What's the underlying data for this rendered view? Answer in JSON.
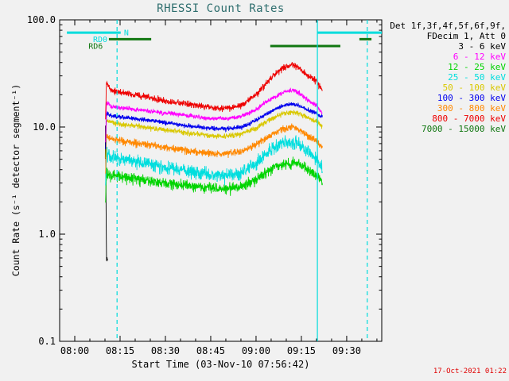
{
  "page": {
    "background": "#f1f1f1"
  },
  "chart_data": {
    "type": "line",
    "title": "RHESSI Count Rates",
    "xlabel": "Start Time (03-Nov-10 07:56:42)",
    "ylabel": "Count Rate (s⁻¹ detector segment⁻¹)",
    "timestamp": "17-Oct-2021 01:22",
    "x_axis": {
      "range_minutes": [
        -5,
        101.6
      ],
      "minor_tick_minutes": 5,
      "major_ticks": [
        {
          "label": "08:00",
          "t": 0
        },
        {
          "label": "08:15",
          "t": 15
        },
        {
          "label": "08:30",
          "t": 30
        },
        {
          "label": "08:45",
          "t": 45
        },
        {
          "label": "09:00",
          "t": 60
        },
        {
          "label": "09:15",
          "t": 75
        },
        {
          "label": "09:30",
          "t": 90
        }
      ]
    },
    "y_axis": {
      "scale": "log",
      "range": [
        0.1,
        100
      ],
      "major_ticks": [
        {
          "label": "0.1",
          "v": 0.1
        },
        {
          "label": "1.0",
          "v": 1
        },
        {
          "label": "10.0",
          "v": 10
        },
        {
          "label": "100.0",
          "v": 100
        }
      ]
    },
    "legend_header": [
      "Det 1f,3f,4f,5f,6f,9f,",
      "FDecim 1, Att 0"
    ],
    "series": [
      {
        "name": "3 - 6 keV",
        "color": "#000000",
        "z": 1,
        "noise": 0.04,
        "points": [
          [
            10.1,
            5
          ],
          [
            10.2,
            14
          ],
          [
            10.35,
            2.2
          ],
          [
            10.5,
            0.55
          ],
          [
            10.7,
            0.62
          ],
          [
            10.9,
            0.55
          ]
        ]
      },
      {
        "name": "6 - 12 keV",
        "color": "#ff00ff",
        "z": 7,
        "noise": 0.05,
        "points": [
          [
            10.2,
            7
          ],
          [
            10.5,
            17
          ],
          [
            12,
            15.5
          ],
          [
            16,
            15
          ],
          [
            20,
            14.5
          ],
          [
            25,
            14
          ],
          [
            30,
            13.5
          ],
          [
            35,
            13
          ],
          [
            40,
            12.5
          ],
          [
            45,
            12
          ],
          [
            50,
            12
          ],
          [
            55,
            12.5
          ],
          [
            60,
            14.5
          ],
          [
            63,
            17
          ],
          [
            66,
            19
          ],
          [
            69,
            21
          ],
          [
            72,
            22
          ],
          [
            74,
            21
          ],
          [
            76,
            19
          ],
          [
            78,
            17
          ],
          [
            80,
            16
          ],
          [
            81,
            14.5
          ],
          [
            82,
            13.5
          ]
        ]
      },
      {
        "name": "12 - 25 keV",
        "color": "#00d400",
        "z": 2,
        "noise": 0.12,
        "points": [
          [
            10.2,
            2
          ],
          [
            10.5,
            3.8
          ],
          [
            12,
            3.6
          ],
          [
            16,
            3.4
          ],
          [
            20,
            3.3
          ],
          [
            25,
            3.15
          ],
          [
            30,
            3
          ],
          [
            35,
            2.9
          ],
          [
            40,
            2.8
          ],
          [
            45,
            2.7
          ],
          [
            50,
            2.65
          ],
          [
            55,
            2.8
          ],
          [
            60,
            3.2
          ],
          [
            63,
            3.7
          ],
          [
            66,
            4.2
          ],
          [
            69,
            4.5
          ],
          [
            72,
            4.6
          ],
          [
            74,
            4.5
          ],
          [
            76,
            4.2
          ],
          [
            78,
            3.8
          ],
          [
            80,
            3.5
          ],
          [
            81,
            3.3
          ],
          [
            82,
            3.1
          ]
        ]
      },
      {
        "name": "25 - 50 keV",
        "color": "#00dede",
        "z": 3,
        "noise": 0.15,
        "points": [
          [
            10.2,
            2.8
          ],
          [
            10.5,
            5.6
          ],
          [
            12,
            5.3
          ],
          [
            16,
            5
          ],
          [
            20,
            4.8
          ],
          [
            25,
            4.5
          ],
          [
            30,
            4.2
          ],
          [
            35,
            4
          ],
          [
            40,
            3.8
          ],
          [
            45,
            3.6
          ],
          [
            50,
            3.5
          ],
          [
            55,
            3.8
          ],
          [
            60,
            4.6
          ],
          [
            63,
            5.5
          ],
          [
            66,
            6.4
          ],
          [
            69,
            7
          ],
          [
            72,
            7.2
          ],
          [
            74,
            7
          ],
          [
            76,
            6.4
          ],
          [
            78,
            5.6
          ],
          [
            80,
            5
          ],
          [
            81,
            4.4
          ],
          [
            82,
            4.1
          ]
        ]
      },
      {
        "name": "50 - 100 keV",
        "color": "#d9c800",
        "z": 5,
        "noise": 0.06,
        "points": [
          [
            10.2,
            5
          ],
          [
            10.5,
            11.5
          ],
          [
            12,
            11
          ],
          [
            16,
            10.5
          ],
          [
            20,
            10.2
          ],
          [
            25,
            9.8
          ],
          [
            30,
            9.4
          ],
          [
            35,
            9
          ],
          [
            40,
            8.6
          ],
          [
            45,
            8.3
          ],
          [
            50,
            8.2
          ],
          [
            55,
            8.6
          ],
          [
            60,
            9.8
          ],
          [
            63,
            11
          ],
          [
            66,
            12.3
          ],
          [
            69,
            13.3
          ],
          [
            72,
            13.8
          ],
          [
            74,
            13.4
          ],
          [
            76,
            12.6
          ],
          [
            78,
            11.8
          ],
          [
            80,
            11.2
          ],
          [
            81,
            10.6
          ],
          [
            82,
            10.2
          ]
        ]
      },
      {
        "name": "100 - 300 keV",
        "color": "#0000ee",
        "z": 6,
        "noise": 0.05,
        "points": [
          [
            10.2,
            6
          ],
          [
            10.5,
            13.5
          ],
          [
            12,
            12.8
          ],
          [
            16,
            12.3
          ],
          [
            20,
            12
          ],
          [
            25,
            11.5
          ],
          [
            30,
            11
          ],
          [
            35,
            10.5
          ],
          [
            40,
            10
          ],
          [
            45,
            9.8
          ],
          [
            50,
            9.6
          ],
          [
            55,
            10
          ],
          [
            60,
            11.5
          ],
          [
            63,
            13
          ],
          [
            66,
            14.5
          ],
          [
            69,
            16
          ],
          [
            72,
            16.5
          ],
          [
            74,
            16
          ],
          [
            76,
            15
          ],
          [
            78,
            14
          ],
          [
            80,
            13.5
          ],
          [
            81,
            12.8
          ],
          [
            82,
            12.2
          ]
        ]
      },
      {
        "name": "300 - 800 keV",
        "color": "#ff8800",
        "z": 4,
        "noise": 0.08,
        "points": [
          [
            10.2,
            3.5
          ],
          [
            10.5,
            8.2
          ],
          [
            12,
            7.8
          ],
          [
            16,
            7.4
          ],
          [
            20,
            7.1
          ],
          [
            25,
            6.8
          ],
          [
            30,
            6.5
          ],
          [
            35,
            6.2
          ],
          [
            40,
            5.9
          ],
          [
            45,
            5.7
          ],
          [
            50,
            5.6
          ],
          [
            55,
            5.9
          ],
          [
            60,
            6.8
          ],
          [
            63,
            7.8
          ],
          [
            66,
            8.8
          ],
          [
            69,
            9.6
          ],
          [
            72,
            10
          ],
          [
            74,
            9.6
          ],
          [
            76,
            8.8
          ],
          [
            78,
            8
          ],
          [
            80,
            7.4
          ],
          [
            81,
            6.8
          ],
          [
            82,
            6.3
          ]
        ]
      },
      {
        "name": "800 - 7000 keV",
        "color": "#ee0000",
        "z": 8,
        "noise": 0.07,
        "points": [
          [
            10.2,
            12
          ],
          [
            10.5,
            26
          ],
          [
            12,
            22
          ],
          [
            16,
            21
          ],
          [
            20,
            20
          ],
          [
            24,
            19
          ],
          [
            28,
            18
          ],
          [
            32,
            17
          ],
          [
            36,
            16.5
          ],
          [
            40,
            16
          ],
          [
            44,
            15.5
          ],
          [
            48,
            15
          ],
          [
            52,
            15
          ],
          [
            56,
            16.5
          ],
          [
            60,
            20
          ],
          [
            63,
            25
          ],
          [
            66,
            31
          ],
          [
            69,
            36
          ],
          [
            72,
            38
          ],
          [
            74,
            36
          ],
          [
            76,
            32
          ],
          [
            78,
            29
          ],
          [
            80,
            27
          ],
          [
            81,
            24
          ],
          [
            82,
            22
          ]
        ]
      },
      {
        "name": "7000 - 15000 keV",
        "color": "#117711",
        "z": 0,
        "noise": 0,
        "points": []
      }
    ],
    "flags": [
      {
        "label": "N",
        "label_color": "#00dcdc",
        "bar_color": "#00dcdc",
        "value": 76,
        "label_t": 16.3,
        "label_anchor": "start",
        "segments": [
          [
            -2.6,
            15.2
          ],
          [
            80.3,
            101.6
          ]
        ]
      },
      {
        "label": "RD0",
        "label_color": "#00dcdc",
        "bar_color": "#117711",
        "value": 66,
        "label_t": 10.8,
        "label_anchor": "end",
        "segments": [
          [
            11.3,
            25.3
          ],
          [
            94.2,
            98.2
          ]
        ]
      },
      {
        "label": "RD6",
        "label_color": "#117711",
        "bar_color": "#117711",
        "value": 57,
        "label_t": 9.3,
        "label_anchor": "end",
        "segments": [
          [
            64.7,
            87.9
          ]
        ]
      }
    ],
    "vlines": [
      {
        "t": 14.0,
        "style": "dashed",
        "color": "#00dcdc"
      },
      {
        "t": 80.3,
        "style": "solid",
        "color": "#00dcdc"
      },
      {
        "t": 96.8,
        "style": "dashed",
        "color": "#00dcdc"
      }
    ]
  }
}
